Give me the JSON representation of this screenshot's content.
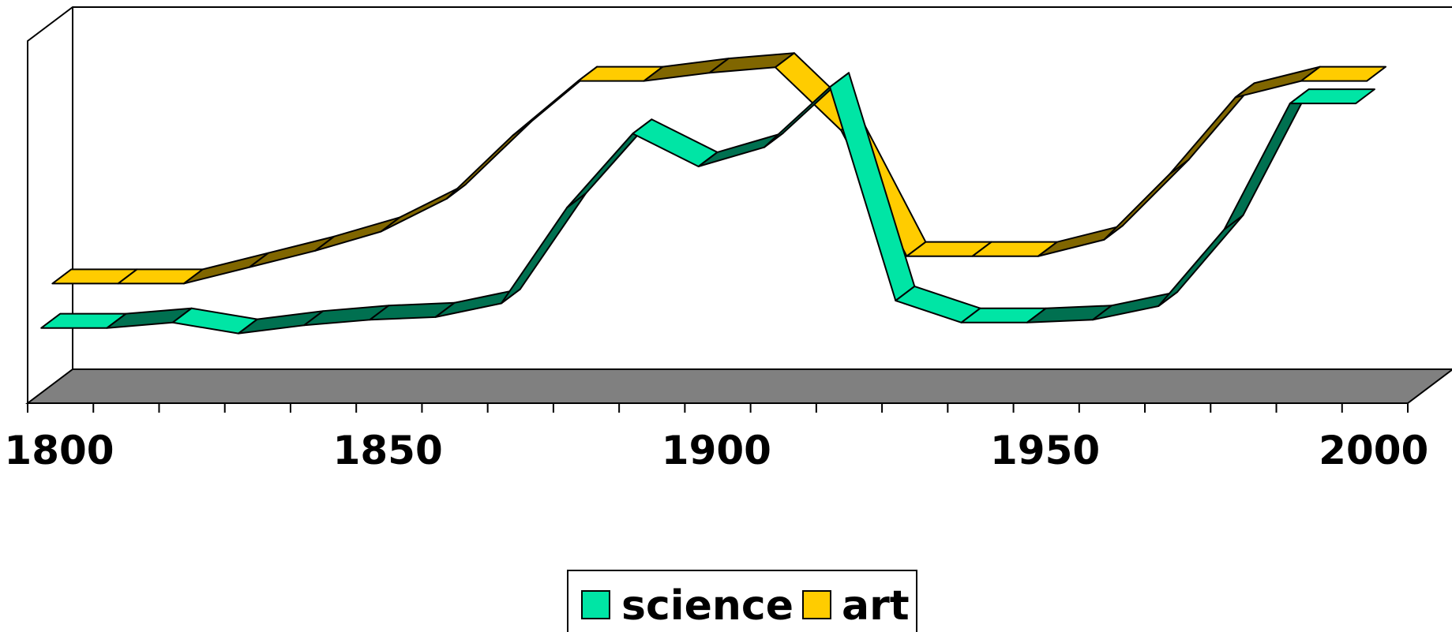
{
  "chart_data": {
    "type": "line",
    "style": "3d-ribbon",
    "x": [
      1800,
      1810,
      1820,
      1830,
      1840,
      1850,
      1860,
      1870,
      1880,
      1890,
      1900,
      1910,
      1920,
      1930,
      1940,
      1950,
      1960,
      1970,
      1980,
      1990,
      2000
    ],
    "xlim": [
      1800,
      2010
    ],
    "xticks": [
      1800,
      1850,
      1900,
      1950,
      2000
    ],
    "ylim": [
      0,
      100
    ],
    "y_axis_labels": false,
    "grid": false,
    "legend_position": "bottom",
    "series": [
      {
        "name": "science",
        "color": "#00E5A5",
        "side_color": "#007050",
        "values": [
          4,
          4,
          6,
          2,
          5,
          7,
          8,
          13,
          48,
          75,
          63,
          70,
          92,
          14,
          6,
          6,
          7,
          12,
          40,
          86,
          86
        ]
      },
      {
        "name": "art",
        "color": "#FFCC00",
        "side_color": "#806600",
        "values": [
          14,
          14,
          14,
          20,
          26,
          33,
          45,
          68,
          88,
          88,
          91,
          93,
          70,
          24,
          24,
          24,
          30,
          54,
          82,
          88,
          88
        ]
      }
    ],
    "tick_labels": [
      "1800",
      "1850",
      "1900",
      "1950",
      "2000"
    ],
    "legend": [
      "science",
      "art"
    ]
  }
}
